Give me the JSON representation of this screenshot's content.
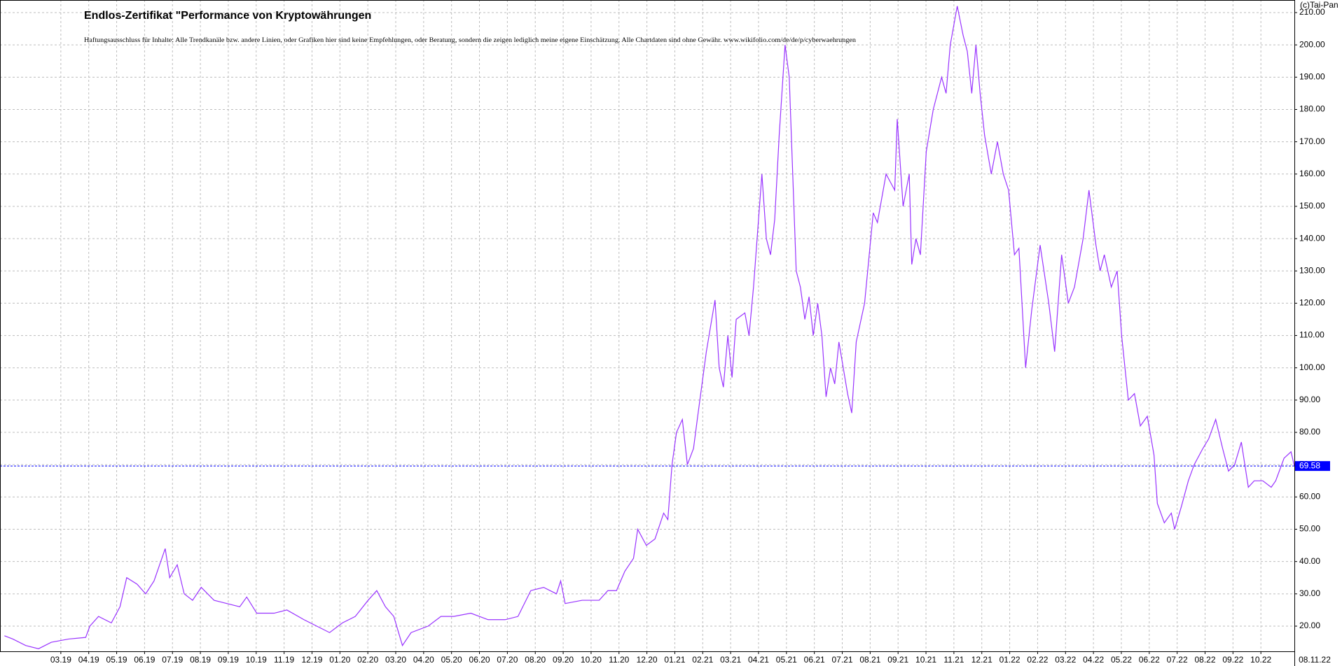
{
  "chart_data": {
    "type": "line",
    "title": "Endlos-Zertifikat \"Performance von Kryptowährungen",
    "subtitle": "Haftungsausschluss für Inhalte: Alle Trendkanäle bzw. andere Linien, oder Grafiken hier sind keine Empfehlungen, oder Beratung, sondern die zeigen lediglich meine eigene Einschätzung. Alle Chartdaten sind ohne Gewähr.  www.wikifolio.com/de/de/p/cyberwaehrungen",
    "watermark": "(c)Tai-Pan",
    "last_date": "08.11.22",
    "last_value": 69.58,
    "color": "#9933ff",
    "last_value_color": "#0000ff",
    "grid": true,
    "x": [
      0.98,
      1.28,
      1.74,
      2.2,
      2.66,
      3.28,
      3.89,
      4.04,
      4.35,
      4.81,
      5.12,
      5.36,
      5.73,
      6.04,
      6.34,
      6.74,
      6.9,
      7.17,
      7.42,
      7.72,
      8.03,
      8.49,
      8.95,
      9.41,
      9.66,
      10.02,
      10.64,
      11.1,
      11.71,
      12.17,
      12.63,
      13.09,
      13.55,
      14.01,
      14.32,
      14.63,
      14.93,
      15.24,
      15.55,
      16.16,
      16.62,
      17.08,
      17.69,
      18.31,
      18.92,
      19.38,
      19.84,
      20.3,
      20.76,
      20.91,
      21.07,
      21.68,
      22.29,
      22.6,
      22.91,
      23.21,
      23.52,
      23.67,
      23.98,
      24.29,
      24.6,
      24.75,
      24.9,
      25.06,
      25.27,
      25.45,
      25.67,
      25.82,
      26.13,
      26.44,
      26.59,
      26.74,
      26.9,
      27.05,
      27.2,
      27.51,
      27.66,
      27.82,
      28.12,
      28.28,
      28.43,
      28.58,
      28.74,
      28.95,
      29.1,
      29.35,
      29.5,
      29.66,
      29.81,
      29.96,
      30.12,
      30.27,
      30.42,
      30.58,
      30.73,
      30.88,
      31.19,
      31.34,
      31.5,
      31.8,
      32.11,
      32.26,
      32.57,
      32.88,
      32.97,
      33.18,
      33.4,
      33.49,
      33.64,
      33.8,
      34.01,
      34.26,
      34.56,
      34.72,
      34.87,
      35.12,
      35.33,
      35.48,
      35.64,
      35.79,
      35.94,
      36.1,
      36.34,
      36.56,
      36.77,
      36.96,
      37.17,
      37.33,
      37.57,
      37.79,
      38.09,
      38.4,
      38.61,
      38.86,
      39.1,
      39.32,
      39.63,
      39.84,
      40.09,
      40.24,
      40.39,
      40.64,
      40.85,
      41.01,
      41.25,
      41.47,
      41.68,
      41.93,
      42.17,
      42.29,
      42.54,
      42.79,
      42.91,
      43.15,
      43.4,
      43.61,
      43.92,
      44.13,
      44.38,
      44.63,
      44.84,
      45.06,
      45.3,
      45.55,
      45.76,
      46.07,
      46.37,
      46.53,
      46.83,
      47.08,
      47.2
    ],
    "values": [
      17,
      16,
      14,
      13,
      15,
      16,
      16.5,
      20,
      23,
      21,
      26,
      35,
      33,
      30,
      34,
      44,
      35,
      39,
      30,
      28,
      32,
      28,
      27,
      26,
      29,
      24,
      24,
      25,
      22,
      20,
      18,
      21,
      23,
      28,
      31,
      26,
      23,
      14,
      18,
      20,
      23,
      23,
      24,
      22,
      22,
      23,
      31,
      32,
      30,
      34,
      27,
      28,
      28,
      31,
      31,
      37,
      41,
      50,
      45,
      47,
      55,
      53,
      70,
      80,
      84,
      70,
      75,
      85,
      105,
      121,
      100,
      94,
      110,
      97,
      115,
      117,
      110,
      125,
      160,
      140,
      135,
      146,
      172,
      200,
      190,
      130,
      125,
      115,
      122,
      110,
      120,
      110,
      91,
      100,
      95,
      108,
      92,
      86,
      108,
      120,
      148,
      145,
      160,
      155,
      177,
      150,
      160,
      132,
      140,
      135,
      167,
      180,
      190,
      185,
      200,
      212,
      203,
      198,
      185,
      200,
      185,
      172,
      160,
      170,
      160,
      155,
      135,
      137,
      100,
      118,
      138,
      120,
      105,
      135,
      120,
      125,
      140,
      155,
      138,
      130,
      135,
      125,
      130,
      110,
      90,
      92,
      82,
      85,
      73,
      58,
      52,
      55,
      50,
      57,
      65,
      70,
      75,
      78,
      84,
      75,
      68,
      70,
      77,
      63,
      65,
      65,
      63,
      65,
      72,
      74,
      69.58
    ],
    "xlim": [
      0.82,
      47.2
    ],
    "ylim": [
      12.2,
      213.9
    ],
    "xticks": [
      {
        "value": 3,
        "label": "03.19"
      },
      {
        "value": 4,
        "label": "04.19"
      },
      {
        "value": 5,
        "label": "05.19"
      },
      {
        "value": 6,
        "label": "06.19"
      },
      {
        "value": 7,
        "label": "07.19"
      },
      {
        "value": 8,
        "label": "08.19"
      },
      {
        "value": 9,
        "label": "09.19"
      },
      {
        "value": 10,
        "label": "10.19"
      },
      {
        "value": 11,
        "label": "11.19"
      },
      {
        "value": 12,
        "label": "12.19"
      },
      {
        "value": 13,
        "label": "01.20"
      },
      {
        "value": 14,
        "label": "02.20"
      },
      {
        "value": 15,
        "label": "03.20"
      },
      {
        "value": 16,
        "label": "04.20"
      },
      {
        "value": 17,
        "label": "05.20"
      },
      {
        "value": 18,
        "label": "06.20"
      },
      {
        "value": 19,
        "label": "07.20"
      },
      {
        "value": 20,
        "label": "08.20"
      },
      {
        "value": 21,
        "label": "09.20"
      },
      {
        "value": 22,
        "label": "10.20"
      },
      {
        "value": 23,
        "label": "11.20"
      },
      {
        "value": 24,
        "label": "12.20"
      },
      {
        "value": 25,
        "label": "01.21"
      },
      {
        "value": 26,
        "label": "02.21"
      },
      {
        "value": 27,
        "label": "03.21"
      },
      {
        "value": 28,
        "label": "04.21"
      },
      {
        "value": 29,
        "label": "05.21"
      },
      {
        "value": 30,
        "label": "06.21"
      },
      {
        "value": 31,
        "label": "07.21"
      },
      {
        "value": 32,
        "label": "08.21"
      },
      {
        "value": 33,
        "label": "09.21"
      },
      {
        "value": 34,
        "label": "10.21"
      },
      {
        "value": 35,
        "label": "11.21"
      },
      {
        "value": 36,
        "label": "12.21"
      },
      {
        "value": 37,
        "label": "01.22"
      },
      {
        "value": 38,
        "label": "02.22"
      },
      {
        "value": 39,
        "label": "03.22"
      },
      {
        "value": 40,
        "label": "04.22"
      },
      {
        "value": 41,
        "label": "05.22"
      },
      {
        "value": 42,
        "label": "06.22"
      },
      {
        "value": 43,
        "label": "07.22"
      },
      {
        "value": 44,
        "label": "08.22"
      },
      {
        "value": 45,
        "label": "09.22"
      },
      {
        "value": 46,
        "label": "10.22"
      }
    ],
    "yticks": [
      {
        "value": 20,
        "label": "20.00"
      },
      {
        "value": 30,
        "label": "30.00"
      },
      {
        "value": 40,
        "label": "40.00"
      },
      {
        "value": 50,
        "label": "50.00"
      },
      {
        "value": 60,
        "label": "60.00"
      },
      {
        "value": 70,
        "label": "70.00"
      },
      {
        "value": 80,
        "label": "80.00"
      },
      {
        "value": 90,
        "label": "90.00"
      },
      {
        "value": 100,
        "label": "100.00"
      },
      {
        "value": 110,
        "label": "110.00"
      },
      {
        "value": 120,
        "label": "120.00"
      },
      {
        "value": 130,
        "label": "130.00"
      },
      {
        "value": 140,
        "label": "140.00"
      },
      {
        "value": 150,
        "label": "150.00"
      },
      {
        "value": 160,
        "label": "160.00"
      },
      {
        "value": 170,
        "label": "170.00"
      },
      {
        "value": 180,
        "label": "180.00"
      },
      {
        "value": 190,
        "label": "190.00"
      },
      {
        "value": 200,
        "label": "200.00"
      },
      {
        "value": 210,
        "label": "210.00"
      }
    ]
  }
}
